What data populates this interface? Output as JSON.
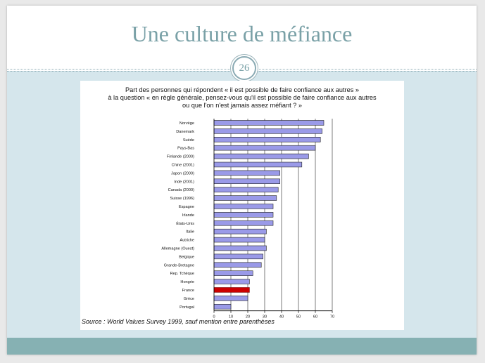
{
  "slide": {
    "title": "Une culture de méfiance",
    "number": "26"
  },
  "colors": {
    "bar_fill": "#9a9ae8",
    "bar_highlight": "#cc0000",
    "title_color": "#7aa1a7",
    "band_color": "#d5e6ec",
    "footer_color": "#86b1b3"
  },
  "chart_data": {
    "type": "bar",
    "orientation": "horizontal",
    "title_lines": [
      "Part des personnes qui répondent « il est possible de faire confiance aux autres »",
      "à la question « en règle générale, pensez-vous qu'il est possible de faire confiance aux autres",
      "ou que l'on n'est jamais assez méfiant ? »"
    ],
    "categories": [
      "Norvège",
      "Danemark",
      "Suède",
      "Pays-Bas",
      "Finlande (2000)",
      "Chine (2001)",
      "Japon (2000)",
      "Inde (2001)",
      "Canada (2000)",
      "Suisse (1996)",
      "Espagne",
      "Irlande",
      "États-Unis",
      "Italie",
      "Autriche",
      "Allemagne (Ouest)",
      "Belgique",
      "Grande-Bretagne",
      "Rep. Tchèque",
      "Hongrie",
      "France",
      "Grèce",
      "Portugal"
    ],
    "values": [
      65,
      64,
      63,
      60,
      56,
      52,
      39,
      39,
      38,
      37,
      35,
      35,
      35,
      31,
      30,
      31,
      29,
      28,
      23,
      21,
      21,
      20,
      10
    ],
    "highlight": "France",
    "xticks": [
      0,
      10,
      20,
      30,
      40,
      50,
      60,
      70
    ],
    "xlim": [
      0,
      70
    ],
    "grid": true,
    "source": "Source : World Values Survey 1999, sauf mention entre parenthèses"
  }
}
